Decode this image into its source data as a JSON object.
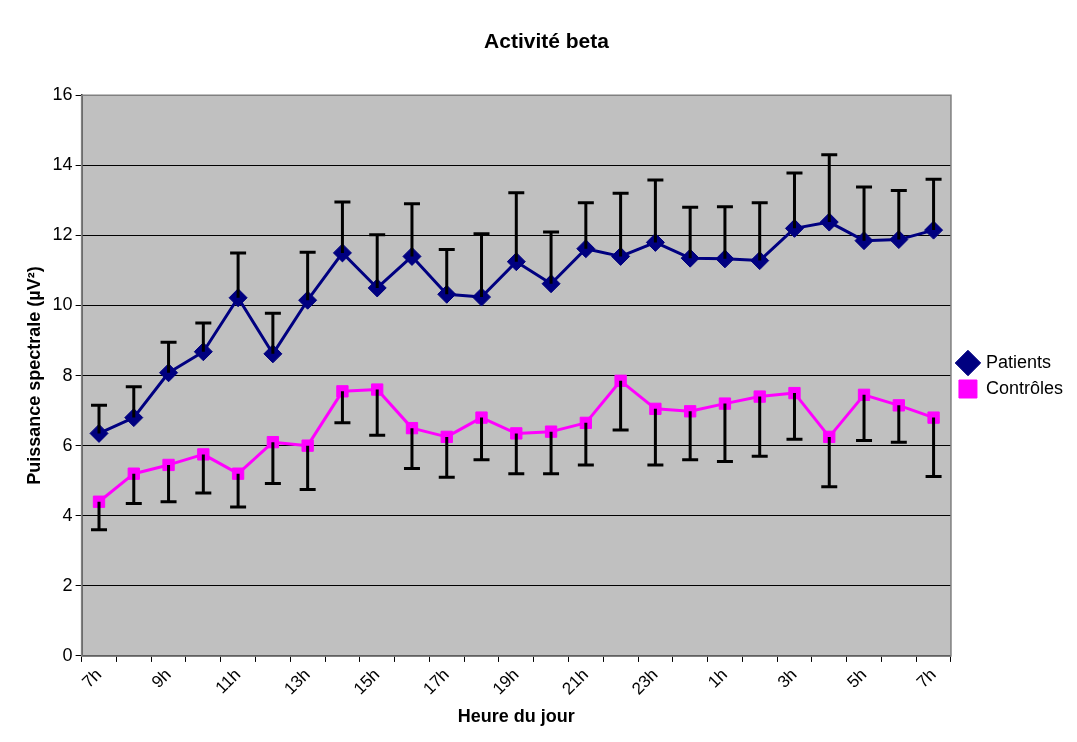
{
  "chart_data": {
    "type": "line",
    "title": "Activité beta",
    "xlabel": "Heure du jour",
    "ylabel": "Puissance spectrale (µV²)",
    "categories": [
      "7h",
      null,
      "9h",
      null,
      "11h",
      null,
      "13h",
      null,
      "15h",
      null,
      "17h",
      null,
      "19h",
      null,
      "21h",
      null,
      "23h",
      null,
      "1h",
      null,
      "3h",
      null,
      "5h",
      null,
      "7h"
    ],
    "series": [
      {
        "name": "Patients",
        "color": "#000080",
        "marker": "diamond",
        "values": [
          6.35,
          6.8,
          8.08,
          8.68,
          10.22,
          8.62,
          10.15,
          11.5,
          10.5,
          11.4,
          10.32,
          10.24,
          11.25,
          10.62,
          11.62,
          11.4,
          11.8,
          11.35,
          11.33,
          11.28,
          12.2,
          12.38,
          11.85,
          11.88,
          12.15
        ],
        "errors": [
          [
            6.35,
            7.15
          ],
          [
            6.8,
            7.68
          ],
          [
            8.08,
            8.95
          ],
          [
            8.68,
            9.5
          ],
          [
            10.22,
            11.5
          ],
          [
            8.62,
            9.78
          ],
          [
            10.15,
            11.52
          ],
          [
            11.5,
            12.95
          ],
          [
            10.5,
            12.02
          ],
          [
            11.4,
            12.9
          ],
          [
            10.32,
            11.6
          ],
          [
            10.24,
            12.05
          ],
          [
            11.25,
            13.22
          ],
          [
            10.62,
            12.1
          ],
          [
            11.62,
            12.93
          ],
          [
            11.4,
            13.2
          ],
          [
            11.8,
            13.58
          ],
          [
            11.35,
            12.8
          ],
          [
            11.33,
            12.82
          ],
          [
            11.28,
            12.93
          ],
          [
            12.2,
            13.78
          ],
          [
            12.38,
            14.3
          ],
          [
            11.85,
            13.38
          ],
          [
            11.88,
            13.28
          ],
          [
            12.15,
            13.6
          ]
        ]
      },
      {
        "name": "Contrôles",
        "color": "#ff00ff",
        "marker": "square",
        "values": [
          4.4,
          5.2,
          5.45,
          5.75,
          5.2,
          6.1,
          6.0,
          7.55,
          7.6,
          6.5,
          6.25,
          6.8,
          6.35,
          6.4,
          6.65,
          7.85,
          7.05,
          6.98,
          7.2,
          7.4,
          7.5,
          6.25,
          7.45,
          7.15,
          6.8
        ],
        "errors": [
          [
            3.6,
            4.4
          ],
          [
            4.35,
            5.2
          ],
          [
            4.4,
            5.45
          ],
          [
            4.65,
            5.75
          ],
          [
            4.25,
            5.2
          ],
          [
            4.92,
            6.1
          ],
          [
            4.75,
            6.0
          ],
          [
            6.65,
            7.55
          ],
          [
            6.3,
            7.6
          ],
          [
            5.35,
            6.5
          ],
          [
            5.1,
            6.25
          ],
          [
            5.6,
            6.8
          ],
          [
            5.2,
            6.35
          ],
          [
            5.2,
            6.4
          ],
          [
            5.45,
            6.65
          ],
          [
            6.45,
            7.85
          ],
          [
            5.45,
            7.05
          ],
          [
            5.6,
            6.98
          ],
          [
            5.55,
            7.2
          ],
          [
            5.7,
            7.4
          ],
          [
            6.18,
            7.5
          ],
          [
            4.83,
            6.25
          ],
          [
            6.15,
            7.45
          ],
          [
            6.1,
            7.15
          ],
          [
            5.12,
            6.8
          ]
        ]
      }
    ],
    "ylim": [
      0,
      16
    ],
    "yticks": [
      0,
      2,
      4,
      6,
      8,
      10,
      12,
      14,
      16
    ],
    "grid": "y",
    "legend": "right",
    "line_style": "solid"
  }
}
